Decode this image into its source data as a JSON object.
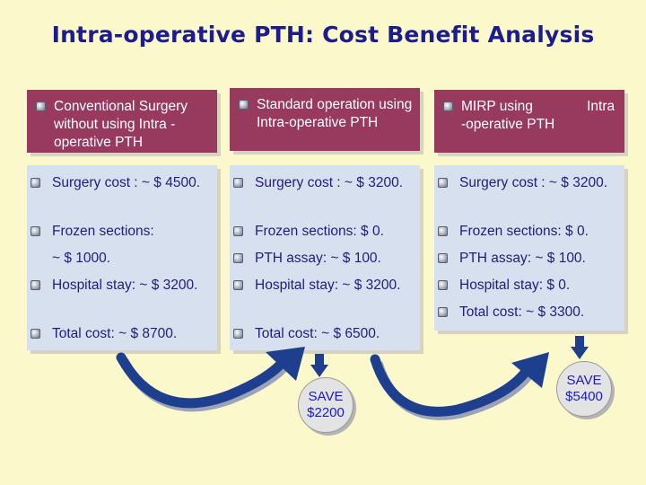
{
  "title": "Intra-operative PTH: Cost Benefit Analysis",
  "columns": [
    {
      "header": "Conventional Surgery without using   Intra -operative PTH",
      "items": [
        "Surgery cost : ~ $ 4500.",
        "Frozen sections:",
        "~ $ 1000.",
        "Hospital stay: ~ $ 3200.",
        "Total cost: ~ $ 8700."
      ]
    },
    {
      "header": "Standard operation using Intra-operative PTH",
      "items": [
        "Surgery cost : ~ $ 3200.",
        "Frozen sections: $ 0.",
        "PTH assay: ~ $ 100.",
        "Hospital stay: ~ $ 3200.",
        "Total cost: ~ $ 6500."
      ]
    },
    {
      "header": "MIRP using              Intra -operative PTH",
      "items": [
        "Surgery cost : ~ $ 3200.",
        "Frozen sections: $ 0.",
        "PTH assay: ~ $ 100.",
        "Hospital stay: $ 0.",
        "Total cost: ~ $ 3300."
      ]
    }
  ],
  "savings": [
    {
      "line1": "SAVE",
      "line2": "$2200"
    },
    {
      "line1": "SAVE",
      "line2": "$5400"
    }
  ],
  "colors": {
    "background": "#fbf8cc",
    "title": "#1c1c8c",
    "header_bg": "#98395e",
    "body_bg": "#d7e0ee",
    "body_text": "#1e1e7a",
    "arrow": "#1e3e8e",
    "save_text": "#1a1ac8"
  }
}
